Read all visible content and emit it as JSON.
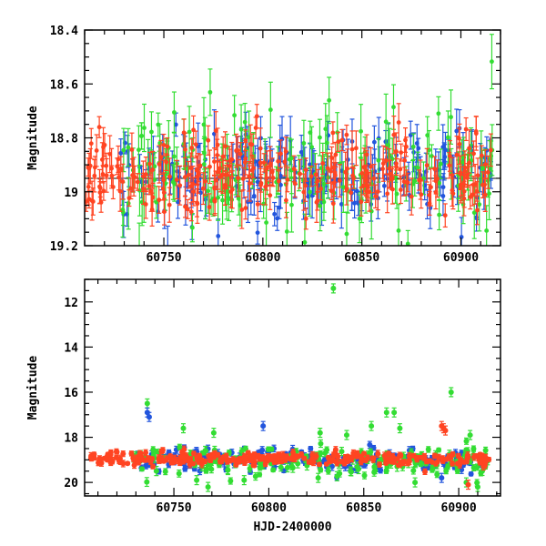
{
  "chart_data": [
    {
      "type": "scatter",
      "title": "",
      "xlabel": "",
      "ylabel": "Magnitude",
      "xlim": [
        60710,
        60920
      ],
      "ylim": [
        19.2,
        18.4
      ],
      "y_inverted": true,
      "x_ticks": [
        60750,
        60800,
        60850,
        60900
      ],
      "x_tick_labels": [
        "60750",
        "60800",
        "60850",
        "60900"
      ],
      "y_ticks": [
        18.4,
        18.6,
        18.8,
        19,
        19.2
      ],
      "y_tick_labels": [
        "18.4",
        "18.6",
        "18.8",
        "19",
        "19.2"
      ],
      "reference_line": 18.95,
      "error_bars": true,
      "series": [
        {
          "color": "#2255dd",
          "x_range": [
            60728,
            60916
          ],
          "n_points": 190,
          "median": 18.93,
          "scatter": 0.09,
          "err": 0.06
        },
        {
          "color": "#33dd33",
          "x_range": [
            60728,
            60916
          ],
          "n_points": 170,
          "median": 18.92,
          "scatter": 0.11,
          "err": 0.07
        },
        {
          "color": "#ff4422",
          "x_range": [
            60710,
            60916
          ],
          "n_points": 280,
          "median": 18.93,
          "scatter": 0.07,
          "err": 0.05
        }
      ]
    },
    {
      "type": "scatter",
      "title": "",
      "xlabel": "HJD-2400000",
      "ylabel": "Magnitude",
      "xlim": [
        60703,
        60922
      ],
      "ylim": [
        20.6,
        11
      ],
      "y_inverted": true,
      "x_ticks": [
        60750,
        60800,
        60850,
        60900
      ],
      "x_tick_labels": [
        "60750",
        "60800",
        "60850",
        "60900"
      ],
      "y_ticks": [
        12,
        14,
        16,
        18,
        20
      ],
      "y_tick_labels": [
        "12",
        "14",
        "16",
        "18",
        "20"
      ],
      "error_bars": true,
      "series": [
        {
          "color": "#2255dd",
          "x_range": [
            60728,
            60916
          ],
          "n_points": 190,
          "median": 19.0,
          "scatter": 0.25,
          "err": 0.12
        },
        {
          "color": "#33dd33",
          "x_range": [
            60728,
            60916
          ],
          "n_points": 170,
          "median": 19.1,
          "scatter": 0.35,
          "err": 0.14
        },
        {
          "color": "#ff4422",
          "x_range": [
            60706,
            60916
          ],
          "n_points": 280,
          "median": 18.95,
          "scatter": 0.15,
          "err": 0.1
        }
      ],
      "outliers": [
        {
          "x": 60834,
          "y": 11.4,
          "color": "#33dd33"
        },
        {
          "x": 60736,
          "y": 16.5,
          "color": "#33dd33"
        },
        {
          "x": 60736,
          "y": 16.9,
          "color": "#2255dd"
        },
        {
          "x": 60737,
          "y": 17.1,
          "color": "#2255dd"
        },
        {
          "x": 60896,
          "y": 16.0,
          "color": "#33dd33"
        },
        {
          "x": 60862,
          "y": 16.9,
          "color": "#33dd33"
        },
        {
          "x": 60866,
          "y": 16.9,
          "color": "#33dd33"
        },
        {
          "x": 60797,
          "y": 17.5,
          "color": "#2255dd"
        },
        {
          "x": 60854,
          "y": 17.5,
          "color": "#33dd33"
        },
        {
          "x": 60891,
          "y": 17.5,
          "color": "#ff4422"
        },
        {
          "x": 60892,
          "y": 17.6,
          "color": "#ff4422"
        },
        {
          "x": 60893,
          "y": 17.7,
          "color": "#ff4422"
        },
        {
          "x": 60755,
          "y": 17.6,
          "color": "#33dd33"
        },
        {
          "x": 60771,
          "y": 17.8,
          "color": "#33dd33"
        },
        {
          "x": 60827,
          "y": 17.8,
          "color": "#33dd33"
        },
        {
          "x": 60841,
          "y": 17.9,
          "color": "#33dd33"
        },
        {
          "x": 60869,
          "y": 17.6,
          "color": "#33dd33"
        },
        {
          "x": 60906,
          "y": 17.9,
          "color": "#33dd33"
        },
        {
          "x": 60768,
          "y": 20.2,
          "color": "#33dd33"
        },
        {
          "x": 60910,
          "y": 20.2,
          "color": "#33dd33"
        },
        {
          "x": 60904,
          "y": 20.0,
          "color": "#33dd33"
        },
        {
          "x": 60877,
          "y": 20.0,
          "color": "#33dd33"
        },
        {
          "x": 60762,
          "y": 19.9,
          "color": "#33dd33"
        },
        {
          "x": 60787,
          "y": 19.9,
          "color": "#33dd33"
        },
        {
          "x": 60826,
          "y": 19.8,
          "color": "#33dd33"
        },
        {
          "x": 60891,
          "y": 19.8,
          "color": "#2255dd"
        },
        {
          "x": 60905,
          "y": 20.1,
          "color": "#ff4422"
        }
      ]
    }
  ]
}
